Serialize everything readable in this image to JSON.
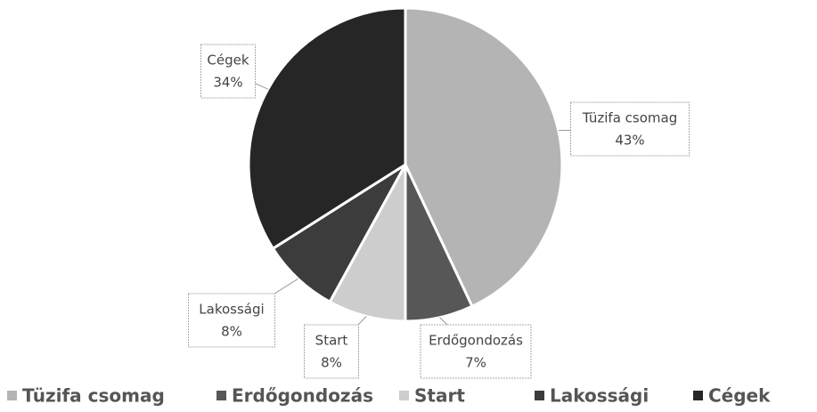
{
  "chart_data": {
    "type": "pie",
    "categories": [
      "Tüzifa csomag",
      "Erdőgondozás",
      "Start",
      "Lakossági",
      "Cégek"
    ],
    "values": [
      43,
      7,
      8,
      8,
      34
    ],
    "value_labels": [
      "43%",
      "7%",
      "8%",
      "8%",
      "34%"
    ],
    "colors": [
      "#b4b4b4",
      "#575757",
      "#cdcdcd",
      "#3c3c3c",
      "#262626"
    ],
    "legend": "bottom"
  }
}
